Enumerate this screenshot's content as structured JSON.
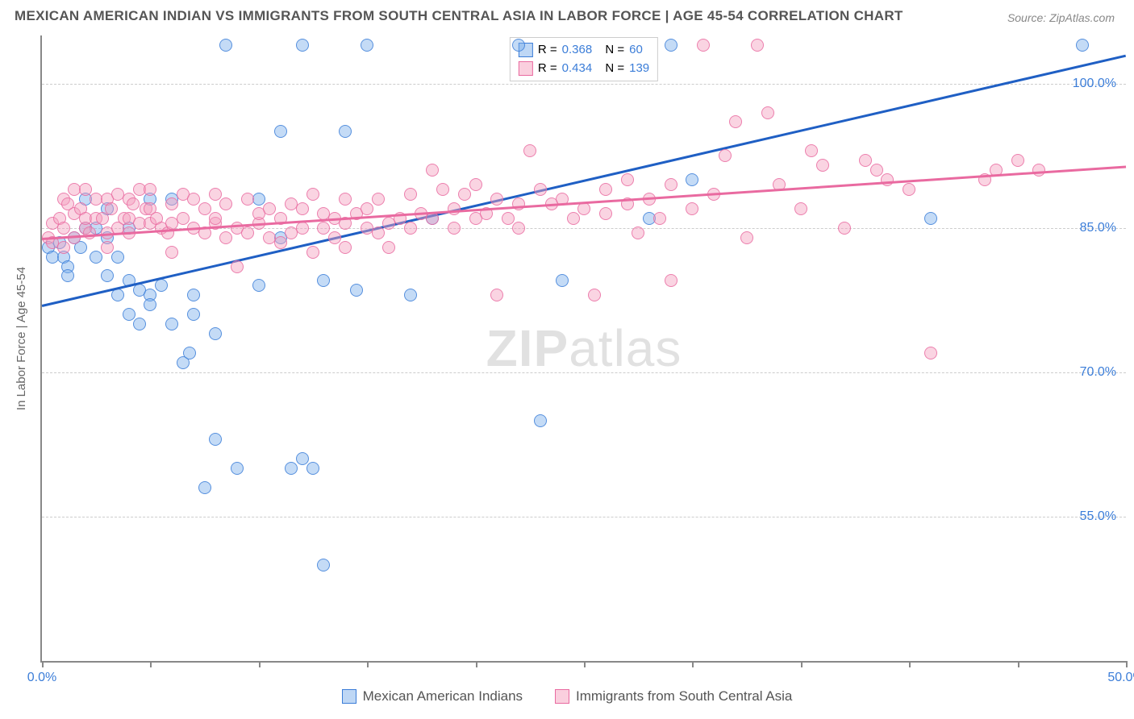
{
  "title": "MEXICAN AMERICAN INDIAN VS IMMIGRANTS FROM SOUTH CENTRAL ASIA IN LABOR FORCE | AGE 45-54 CORRELATION CHART",
  "source": "Source: ZipAtlas.com",
  "y_axis_label": "In Labor Force | Age 45-54",
  "watermark_bold": "ZIP",
  "watermark_rest": "atlas",
  "chart": {
    "type": "scatter",
    "xlim": [
      0,
      50
    ],
    "ylim": [
      40,
      105
    ],
    "y_ticks": [
      55,
      70,
      85,
      100
    ],
    "y_tick_labels": [
      "55.0%",
      "70.0%",
      "85.0%",
      "100.0%"
    ],
    "x_ticks": [
      0,
      5,
      10,
      15,
      20,
      25,
      30,
      35,
      40,
      45,
      50
    ],
    "x_tick_labels": {
      "0": "0.0%",
      "50": "50.0%"
    },
    "background_color": "#ffffff",
    "grid_color": "#cccccc",
    "marker_radius": 8,
    "series": [
      {
        "name": "Mexican American Indians",
        "color_fill": "rgba(125,175,235,0.45)",
        "color_border": "#3b7dd8",
        "r_label": "R =",
        "r_value": "0.368",
        "n_label": "N =",
        "n_value": "60",
        "trend": {
          "x1": 0,
          "y1": 77,
          "x2": 50,
          "y2": 103,
          "color": "#1f5fc4"
        },
        "points": [
          [
            0.3,
            83
          ],
          [
            0.5,
            82
          ],
          [
            0.8,
            83.5
          ],
          [
            1,
            82
          ],
          [
            1.2,
            81
          ],
          [
            1.2,
            80
          ],
          [
            1.5,
            84
          ],
          [
            1.8,
            83
          ],
          [
            2,
            85
          ],
          [
            2,
            88
          ],
          [
            2.5,
            82
          ],
          [
            2.5,
            85
          ],
          [
            3,
            80
          ],
          [
            3,
            84
          ],
          [
            3,
            87
          ],
          [
            3.5,
            78
          ],
          [
            3.5,
            82
          ],
          [
            4,
            79.5
          ],
          [
            4,
            76
          ],
          [
            4,
            85
          ],
          [
            4.5,
            75
          ],
          [
            4.5,
            78.5
          ],
          [
            5,
            78
          ],
          [
            5,
            77
          ],
          [
            5,
            88
          ],
          [
            5.5,
            79
          ],
          [
            6,
            75
          ],
          [
            6,
            88
          ],
          [
            6.5,
            71
          ],
          [
            6.8,
            72
          ],
          [
            7,
            78
          ],
          [
            7,
            76
          ],
          [
            7.5,
            58
          ],
          [
            8,
            74
          ],
          [
            8,
            63
          ],
          [
            8.5,
            104
          ],
          [
            9,
            60
          ],
          [
            10,
            88
          ],
          [
            10,
            79
          ],
          [
            11,
            95
          ],
          [
            11,
            84
          ],
          [
            11.5,
            60
          ],
          [
            12,
            104
          ],
          [
            12,
            61
          ],
          [
            12.5,
            60
          ],
          [
            13,
            50
          ],
          [
            13,
            79.5
          ],
          [
            14,
            95
          ],
          [
            14.5,
            78.5
          ],
          [
            15,
            104
          ],
          [
            17,
            78
          ],
          [
            18,
            86
          ],
          [
            22,
            104
          ],
          [
            23,
            65
          ],
          [
            24,
            79.5
          ],
          [
            28,
            86
          ],
          [
            29,
            104
          ],
          [
            30,
            90
          ],
          [
            41,
            86
          ],
          [
            48,
            104
          ]
        ]
      },
      {
        "name": "Immigrants from South Central Asia",
        "color_fill": "rgba(245,160,190,0.45)",
        "color_border": "#e96aa0",
        "r_label": "R =",
        "r_value": "0.434",
        "n_label": "N =",
        "n_value": "139",
        "trend": {
          "x1": 0,
          "y1": 84,
          "x2": 50,
          "y2": 91.5,
          "color": "#e96aa0"
        },
        "points": [
          [
            0.3,
            84
          ],
          [
            0.5,
            85.5
          ],
          [
            0.5,
            83.5
          ],
          [
            0.8,
            86
          ],
          [
            1,
            85
          ],
          [
            1,
            88
          ],
          [
            1,
            83
          ],
          [
            1.2,
            87.5
          ],
          [
            1.5,
            86.5
          ],
          [
            1.5,
            89
          ],
          [
            1.5,
            84
          ],
          [
            1.8,
            87
          ],
          [
            2,
            85
          ],
          [
            2,
            86
          ],
          [
            2,
            89
          ],
          [
            2.2,
            84.5
          ],
          [
            2.5,
            86
          ],
          [
            2.5,
            88
          ],
          [
            2.8,
            86
          ],
          [
            3,
            84.5
          ],
          [
            3,
            88
          ],
          [
            3,
            83
          ],
          [
            3.2,
            87
          ],
          [
            3.5,
            85
          ],
          [
            3.5,
            88.5
          ],
          [
            3.8,
            86
          ],
          [
            4,
            84.5
          ],
          [
            4,
            86
          ],
          [
            4,
            88
          ],
          [
            4.2,
            87.5
          ],
          [
            4.5,
            85.5
          ],
          [
            4.5,
            89
          ],
          [
            4.8,
            87
          ],
          [
            5,
            85.5
          ],
          [
            5,
            87
          ],
          [
            5,
            89
          ],
          [
            5.3,
            86
          ],
          [
            5.5,
            85
          ],
          [
            5.8,
            84.5
          ],
          [
            6,
            87.5
          ],
          [
            6,
            85.5
          ],
          [
            6,
            82.5
          ],
          [
            6.5,
            88.5
          ],
          [
            6.5,
            86
          ],
          [
            7,
            85
          ],
          [
            7,
            88
          ],
          [
            7.5,
            84.5
          ],
          [
            7.5,
            87
          ],
          [
            8,
            85.5
          ],
          [
            8,
            88.5
          ],
          [
            8,
            86
          ],
          [
            8.5,
            84
          ],
          [
            8.5,
            87.5
          ],
          [
            9,
            85
          ],
          [
            9,
            81
          ],
          [
            9.5,
            84.5
          ],
          [
            9.5,
            88
          ],
          [
            10,
            85.5
          ],
          [
            10,
            86.5
          ],
          [
            10.5,
            84
          ],
          [
            10.5,
            87
          ],
          [
            11,
            83.5
          ],
          [
            11,
            86
          ],
          [
            11.5,
            87.5
          ],
          [
            11.5,
            84.5
          ],
          [
            12,
            85
          ],
          [
            12,
            87
          ],
          [
            12.5,
            82.5
          ],
          [
            12.5,
            88.5
          ],
          [
            13,
            86.5
          ],
          [
            13,
            85
          ],
          [
            13.5,
            84
          ],
          [
            13.5,
            86
          ],
          [
            14,
            85.5
          ],
          [
            14,
            88
          ],
          [
            14,
            83
          ],
          [
            14.5,
            86.5
          ],
          [
            15,
            85
          ],
          [
            15,
            87
          ],
          [
            15.5,
            84.5
          ],
          [
            15.5,
            88
          ],
          [
            16,
            85.5
          ],
          [
            16,
            83
          ],
          [
            16.5,
            86
          ],
          [
            17,
            88.5
          ],
          [
            17,
            85
          ],
          [
            17.5,
            86.5
          ],
          [
            18,
            86
          ],
          [
            18,
            91
          ],
          [
            18.5,
            89
          ],
          [
            19,
            85
          ],
          [
            19,
            87
          ],
          [
            19.5,
            88.5
          ],
          [
            20,
            86
          ],
          [
            20,
            89.5
          ],
          [
            20.5,
            86.5
          ],
          [
            21,
            78
          ],
          [
            21,
            88
          ],
          [
            21.5,
            86
          ],
          [
            22,
            87.5
          ],
          [
            22,
            85
          ],
          [
            22.5,
            93
          ],
          [
            23,
            89
          ],
          [
            23.5,
            87.5
          ],
          [
            24,
            88
          ],
          [
            24.5,
            86
          ],
          [
            25,
            87
          ],
          [
            25.5,
            78
          ],
          [
            26,
            89
          ],
          [
            26,
            86.5
          ],
          [
            27,
            87.5
          ],
          [
            27,
            90
          ],
          [
            27.5,
            84.5
          ],
          [
            28,
            88
          ],
          [
            28.5,
            86
          ],
          [
            29,
            89.5
          ],
          [
            29,
            79.5
          ],
          [
            30,
            87
          ],
          [
            30.5,
            104
          ],
          [
            31,
            88.5
          ],
          [
            31.5,
            92.5
          ],
          [
            32,
            96
          ],
          [
            32.5,
            84
          ],
          [
            33,
            104
          ],
          [
            33.5,
            97
          ],
          [
            34,
            89.5
          ],
          [
            35,
            87
          ],
          [
            35.5,
            93
          ],
          [
            36,
            91.5
          ],
          [
            37,
            85
          ],
          [
            38,
            92
          ],
          [
            38.5,
            91
          ],
          [
            39,
            90
          ],
          [
            40,
            89
          ],
          [
            41,
            72
          ],
          [
            43.5,
            90
          ],
          [
            44,
            91
          ],
          [
            45,
            92
          ],
          [
            46,
            91
          ]
        ]
      }
    ]
  },
  "bottom_legend": [
    {
      "label": "Mexican American Indians",
      "cls": "legend-blue"
    },
    {
      "label": "Immigrants from South Central Asia",
      "cls": "legend-pink"
    }
  ]
}
